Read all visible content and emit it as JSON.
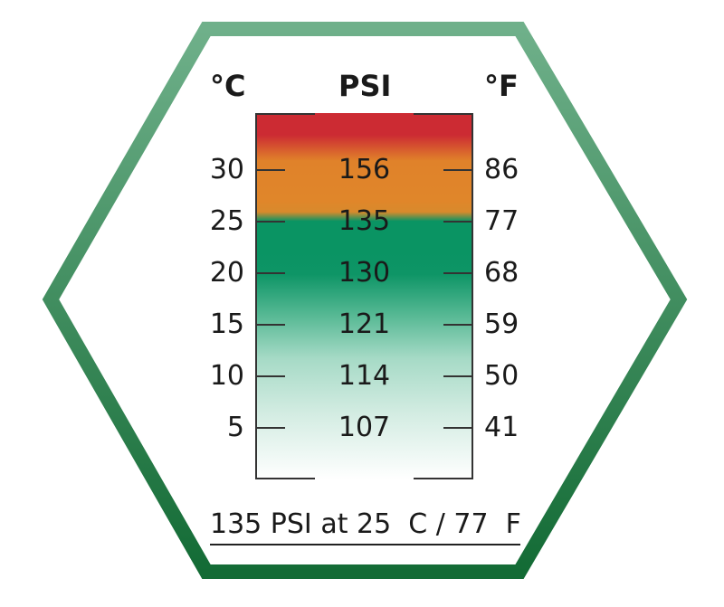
{
  "colors": {
    "border_top": "#6fb08a",
    "border_bottom": "#136b35",
    "hot": "#cc2b33",
    "warm": "#e0822a",
    "ok": "#0a9463"
  },
  "headers": {
    "celsius": "°C",
    "psi": "PSI",
    "fahrenheit": "°F"
  },
  "rows": [
    {
      "c": "30",
      "psi": "156",
      "f": "86"
    },
    {
      "c": "25",
      "psi": "135",
      "f": "77"
    },
    {
      "c": "20",
      "psi": "130",
      "f": "68"
    },
    {
      "c": "15",
      "psi": "121",
      "f": "59"
    },
    {
      "c": "10",
      "psi": "114",
      "f": "50"
    },
    {
      "c": "5",
      "psi": "107",
      "f": "41"
    }
  ],
  "footer": "135 PSI at 25  C / 77  F"
}
